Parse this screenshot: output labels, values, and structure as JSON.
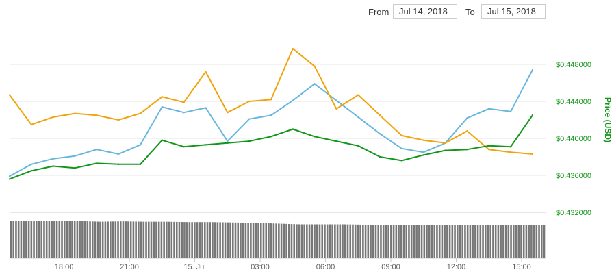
{
  "range": {
    "from_label": "From",
    "from_value": "Jul 14, 2018",
    "to_label": "To",
    "to_value": "Jul 15, 2018"
  },
  "colors": {
    "green": "#109618",
    "gridline": "#e6e6e6",
    "axis_text": "#606060",
    "volume": "#777777"
  },
  "chart_data": {
    "type": "line",
    "ylabel": "Price (USD)",
    "x_tick_labels": [
      "18:00",
      "21:00",
      "15. Jul",
      "03:00",
      "06:00",
      "09:00",
      "12:00",
      "15:00"
    ],
    "y_tick_labels": [
      "$0.448000",
      "$0.444000",
      "$0.440000",
      "$0.436000",
      "$0.432000"
    ],
    "y_ticks": [
      0.448,
      0.444,
      0.44,
      0.436,
      0.432
    ],
    "ylim": [
      0.432,
      0.452
    ],
    "x_hours": [
      15.5,
      16.5,
      17.5,
      18.5,
      19.5,
      20.5,
      21.5,
      22.5,
      23.5,
      24.5,
      25.5,
      26.5,
      27.5,
      28.5,
      29.5,
      30.5,
      31.5,
      32.5,
      33.5,
      34.5,
      35.5,
      36.5,
      37.5,
      38.5,
      39.5
    ],
    "xlim_hours": [
      15.5,
      40.1
    ],
    "series": [
      {
        "color": "#67b7dc",
        "values": [
          0.4359,
          0.4372,
          0.4378,
          0.4381,
          0.4388,
          0.4383,
          0.4393,
          0.4434,
          0.4428,
          0.4433,
          0.4397,
          0.4421,
          0.4425,
          0.4441,
          0.4459,
          0.4441,
          0.4423,
          0.4405,
          0.4389,
          0.4385,
          0.4395,
          0.4422,
          0.4432,
          0.4429,
          0.4474
        ]
      },
      {
        "color": "#f0a30a",
        "values": [
          0.4447,
          0.4415,
          0.4423,
          0.4427,
          0.4425,
          0.442,
          0.4427,
          0.4445,
          0.4439,
          0.4472,
          0.4428,
          0.444,
          0.4442,
          0.4497,
          0.4478,
          0.4432,
          0.4447,
          0.4425,
          0.4403,
          0.4398,
          0.4395,
          0.4408,
          0.4388,
          0.4385,
          0.4383
        ]
      },
      {
        "color": "#109618",
        "values": [
          0.4356,
          0.4365,
          0.437,
          0.4368,
          0.4373,
          0.4372,
          0.4372,
          0.4398,
          0.4391,
          0.4393,
          0.4395,
          0.4397,
          0.4402,
          0.441,
          0.4402,
          0.4397,
          0.4392,
          0.438,
          0.4376,
          0.4382,
          0.4387,
          0.4388,
          0.4392,
          0.4391,
          0.4425
        ]
      }
    ],
    "volume_values": [
      1.0,
      1.0,
      1.0,
      0.99,
      0.97,
      0.98,
      0.97,
      0.97,
      0.96,
      0.96,
      0.95,
      0.94,
      0.92,
      0.9,
      0.9,
      0.9,
      0.89,
      0.89,
      0.88,
      0.88,
      0.88,
      0.88,
      0.89,
      0.89,
      0.89
    ]
  }
}
